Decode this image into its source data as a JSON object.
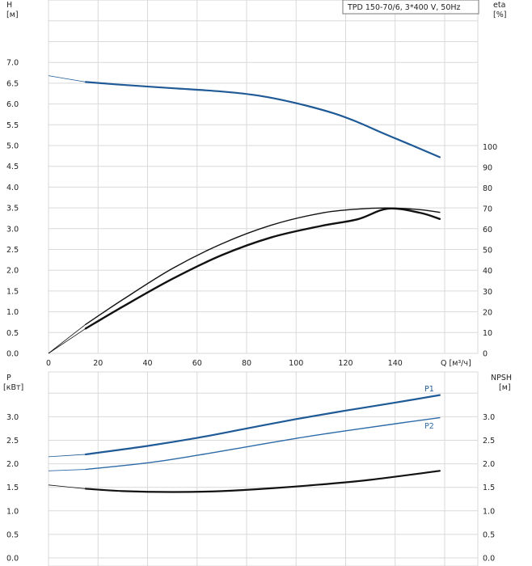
{
  "chart_data": [
    {
      "type": "line",
      "title": "TPD 150-70/6, 3*400 V, 50Hz",
      "xlabel": "Q [м³/ч]",
      "xlim": [
        0,
        160
      ],
      "xticks": [
        "0",
        "20",
        "40",
        "60",
        "80",
        "100",
        "120",
        "140"
      ],
      "y_left": {
        "label_top": "H",
        "label_unit": "[м]",
        "lim": [
          0,
          7.0
        ],
        "ticks": [
          "0.0",
          "0.5",
          "1.0",
          "1.5",
          "2.0",
          "2.5",
          "3.0",
          "3.5",
          "4.0",
          "4.5",
          "5.0",
          "5.5",
          "6.0",
          "6.5",
          "7.0"
        ]
      },
      "y_right": {
        "label_top": "eta",
        "label_unit": "[%]",
        "lim": [
          0,
          100
        ],
        "ticks": [
          "0",
          "10",
          "20",
          "30",
          "40",
          "50",
          "60",
          "70",
          "80",
          "90",
          "100"
        ]
      },
      "grid": true,
      "series": [
        {
          "axis": "left",
          "color": "#1f5a96",
          "x": [
            0,
            15,
            30,
            50,
            70,
            85,
            100,
            115,
            125,
            135,
            145,
            158
          ],
          "y": [
            6.68,
            6.53,
            6.46,
            6.38,
            6.3,
            6.2,
            6.02,
            5.78,
            5.56,
            5.3,
            5.05,
            4.72
          ],
          "segment_start_x": 15
        },
        {
          "axis": "right",
          "color": "#111111",
          "x": [
            0,
            15,
            30,
            50,
            70,
            90,
            110,
            125,
            137,
            150,
            158
          ],
          "y": [
            0,
            12,
            22.6,
            36,
            47.5,
            56.1,
            61.6,
            64.9,
            70,
            68,
            65
          ],
          "segment_start_x": 15
        },
        {
          "axis": "right",
          "color": "#111111",
          "x": [
            0,
            15,
            30,
            50,
            70,
            90,
            110,
            125,
            137,
            150,
            158
          ],
          "y": [
            0,
            14,
            26,
            41,
            53,
            62,
            67.8,
            69.8,
            70.3,
            69.5,
            68.2
          ],
          "segment_start_x": 15
        }
      ]
    },
    {
      "type": "line",
      "xlim": [
        0,
        160
      ],
      "y_left": {
        "label_top": "P",
        "label_unit": "[кВт]",
        "lim": [
          0,
          3.5
        ],
        "ticks": [
          "0.0",
          "0.5",
          "1.0",
          "1.5",
          "2.0",
          "2.5",
          "3.0"
        ]
      },
      "y_right": {
        "label_top": "NPSH",
        "label_unit": "[м]",
        "lim": [
          0,
          3.5
        ],
        "ticks": [
          "0.0",
          "0.5",
          "1.0",
          "1.5",
          "2.0",
          "2.5",
          "3.0"
        ]
      },
      "grid": true,
      "series": [
        {
          "name": "P1",
          "axis": "left",
          "color": "#1f5a96",
          "x": [
            0,
            15,
            40,
            60,
            80,
            100,
            120,
            140,
            158
          ],
          "y": [
            2.15,
            2.2,
            2.38,
            2.55,
            2.75,
            2.95,
            3.13,
            3.3,
            3.46
          ],
          "segment_start_x": 15
        },
        {
          "name": "P2",
          "axis": "left",
          "color": "#2d6aa8",
          "x": [
            0,
            15,
            40,
            60,
            80,
            100,
            120,
            140,
            158
          ],
          "y": [
            1.85,
            1.88,
            2.02,
            2.18,
            2.36,
            2.54,
            2.7,
            2.85,
            2.98
          ],
          "segment_start_x": 15
        },
        {
          "axis": "right",
          "color": "#111111",
          "x": [
            0,
            15,
            30,
            50,
            70,
            90,
            110,
            130,
            158
          ],
          "y": [
            1.55,
            1.47,
            1.42,
            1.4,
            1.42,
            1.48,
            1.56,
            1.66,
            1.85
          ],
          "segment_start_x": 15
        }
      ]
    }
  ]
}
